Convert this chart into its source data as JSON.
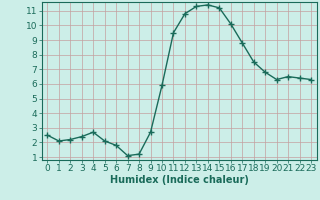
{
  "x": [
    0,
    1,
    2,
    3,
    4,
    5,
    6,
    7,
    8,
    9,
    10,
    11,
    12,
    13,
    14,
    15,
    16,
    17,
    18,
    19,
    20,
    21,
    22,
    23
  ],
  "y": [
    2.5,
    2.1,
    2.2,
    2.4,
    2.7,
    2.1,
    1.8,
    1.1,
    1.2,
    2.7,
    5.9,
    9.5,
    10.8,
    11.3,
    11.4,
    11.2,
    10.1,
    8.8,
    7.5,
    6.8,
    6.3,
    6.5,
    6.4,
    6.3
  ],
  "line_color": "#1a6b5a",
  "marker": "+",
  "marker_size": 4,
  "bg_color": "#cceee8",
  "grid_color": "#c4a0a0",
  "xlabel": "Humidex (Indice chaleur)",
  "xlim": [
    -0.5,
    23.5
  ],
  "ylim": [
    0.8,
    11.6
  ],
  "yticks": [
    1,
    2,
    3,
    4,
    5,
    6,
    7,
    8,
    9,
    10,
    11
  ],
  "xticks": [
    0,
    1,
    2,
    3,
    4,
    5,
    6,
    7,
    8,
    9,
    10,
    11,
    12,
    13,
    14,
    15,
    16,
    17,
    18,
    19,
    20,
    21,
    22,
    23
  ],
  "tick_color": "#1a6b5a",
  "axis_color": "#1a6b5a",
  "label_fontsize": 7,
  "tick_fontsize": 6.5,
  "linewidth": 1.0
}
